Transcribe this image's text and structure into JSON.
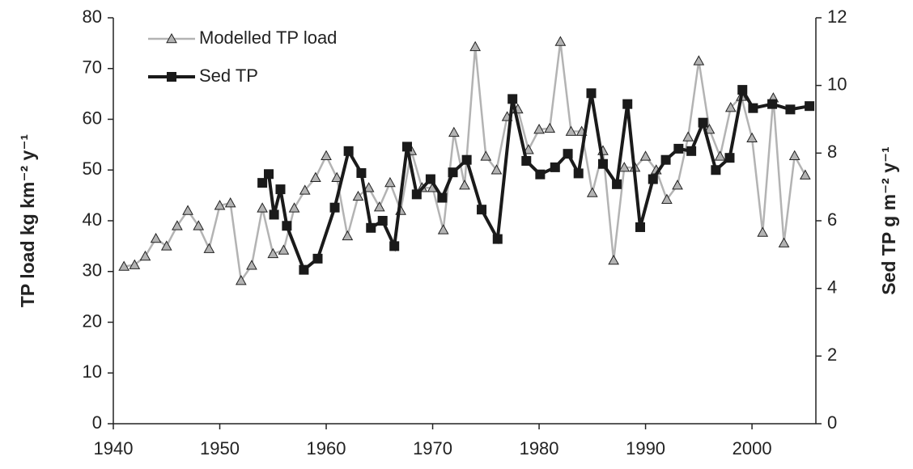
{
  "chart_data": {
    "type": "line",
    "y_label": "TP load kg km⁻² y⁻¹",
    "y2_label": "Sed TP g m⁻² y⁻¹",
    "xlim": [
      1940,
      2006
    ],
    "xticks": [
      1940,
      1950,
      1960,
      1970,
      1980,
      1990,
      2000
    ],
    "ylim": [
      0,
      80
    ],
    "yticks": [
      0,
      10,
      20,
      30,
      40,
      50,
      60,
      70,
      80
    ],
    "y2lim": [
      0,
      12
    ],
    "y2ticks": [
      0,
      2,
      4,
      6,
      8,
      10,
      12
    ],
    "legend": "upper left",
    "series": [
      {
        "name": "Modelled TP load",
        "color": "#b3b3b3",
        "marker": "triangle",
        "marker_fill": "#b3b3b3",
        "x": [
          1941,
          1942,
          1943,
          1944,
          1945,
          1946,
          1947,
          1948,
          1949,
          1950,
          1951,
          1952,
          1953,
          1954,
          1955,
          1956,
          1957,
          1958,
          1959,
          1960,
          1961,
          1962,
          1963,
          1964,
          1965,
          1966,
          1967,
          1968,
          1969,
          1970,
          1971,
          1972,
          1973,
          1974,
          1975,
          1976,
          1977,
          1978,
          1979,
          1980,
          1981,
          1982,
          1983,
          1984,
          1985,
          1986,
          1987,
          1988,
          1989,
          1990,
          1991,
          1992,
          1993,
          1994,
          1995,
          1996,
          1997,
          1998,
          1999,
          2000,
          2001,
          2002,
          2003,
          2004,
          2005
        ],
        "values": [
          31,
          31.3,
          33,
          36.5,
          35,
          39,
          42,
          39,
          34.5,
          43,
          43.5,
          28.2,
          31.2,
          42.5,
          33.5,
          34.2,
          42.5,
          46,
          48.5,
          52.8,
          48.5,
          37,
          44.8,
          46.5,
          42.7,
          47.5,
          42,
          53.8,
          46.5,
          46.5,
          38.2,
          57.4,
          47,
          74.3,
          52.7,
          50,
          60.5,
          62,
          54,
          58,
          58.2,
          75.3,
          57.6,
          57.6,
          45.5,
          53.8,
          32.2,
          50.5,
          50.5,
          52.7,
          50,
          44.2,
          47,
          56.5,
          71.5,
          58,
          52.7,
          62.3,
          64.5,
          56.3,
          37.7,
          64.2,
          35.6,
          52.8,
          49
        ]
      },
      {
        "name": "Sed TP",
        "color": "#1a1a1a",
        "marker": "square",
        "axis": "y2",
        "x": [
          1954.0,
          1954.6,
          1955.1,
          1955.7,
          1956.3,
          1957.9,
          1959.2,
          1960.8,
          1962.1,
          1963.3,
          1964.2,
          1965.3,
          1966.4,
          1967.6,
          1968.5,
          1969.8,
          1970.9,
          1971.9,
          1973.2,
          1974.6,
          1976.1,
          1977.5,
          1978.8,
          1980.1,
          1981.5,
          1982.7,
          1983.7,
          1984.9,
          1986.0,
          1987.3,
          1988.3,
          1989.5,
          1990.7,
          1991.9,
          1993.1,
          1994.3,
          1995.4,
          1996.6,
          1997.9,
          1999.1,
          2000.1,
          2001.9,
          2003.6,
          2005.4
        ],
        "values": [
          7.12,
          7.38,
          6.18,
          6.93,
          5.85,
          4.55,
          4.88,
          6.39,
          8.06,
          7.41,
          5.79,
          6.0,
          5.25,
          8.19,
          6.78,
          7.23,
          6.68,
          7.43,
          7.8,
          6.33,
          5.46,
          9.6,
          7.77,
          7.37,
          7.58,
          7.98,
          7.4,
          9.77,
          7.68,
          7.08,
          9.45,
          5.81,
          7.23,
          7.8,
          8.13,
          8.06,
          8.9,
          7.5,
          7.86,
          9.87,
          9.33,
          9.45,
          9.29,
          9.39
        ]
      }
    ]
  }
}
